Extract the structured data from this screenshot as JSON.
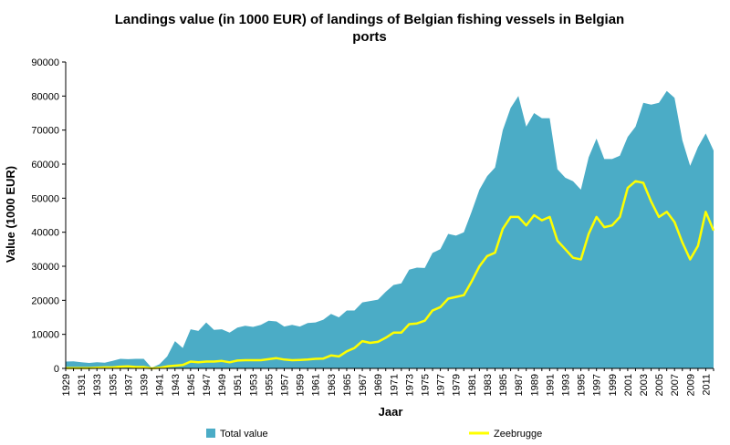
{
  "chart_data": {
    "type": "area",
    "title_lines": [
      "Landings value (in 1000 EUR) of landings of Belgian fishing vessels in Belgian",
      "ports"
    ],
    "xlabel": "Jaar",
    "ylabel": "Value  (1000 EUR)",
    "ylim": [
      0,
      90000
    ],
    "yticks": [
      "0",
      "10000",
      "20000",
      "30000",
      "40000",
      "50000",
      "60000",
      "70000",
      "80000",
      "90000"
    ],
    "xlim": [
      1929,
      2012
    ],
    "xtick_labels": [
      "1929",
      "1931",
      "1933",
      "1935",
      "1937",
      "1939",
      "1941",
      "1943",
      "1945",
      "1947",
      "1949",
      "1951",
      "1953",
      "1955",
      "1957",
      "1959",
      "1961",
      "1963",
      "1965",
      "1967",
      "1969",
      "1971",
      "1973",
      "1975",
      "1977",
      "1979",
      "1981",
      "1983",
      "1985",
      "1987",
      "1989",
      "1991",
      "1993",
      "1995",
      "1997",
      "1999",
      "2001",
      "2003",
      "2005",
      "2007",
      "2009",
      "2011"
    ],
    "legend_position": "bottom",
    "x": [
      1929,
      1930,
      1931,
      1932,
      1933,
      1934,
      1935,
      1936,
      1937,
      1938,
      1939,
      1940,
      1941,
      1942,
      1943,
      1944,
      1945,
      1946,
      1947,
      1948,
      1949,
      1950,
      1951,
      1952,
      1953,
      1954,
      1955,
      1956,
      1957,
      1958,
      1959,
      1960,
      1961,
      1962,
      1963,
      1964,
      1965,
      1966,
      1967,
      1968,
      1969,
      1970,
      1971,
      1972,
      1973,
      1974,
      1975,
      1976,
      1977,
      1978,
      1979,
      1980,
      1981,
      1982,
      1983,
      1984,
      1985,
      1986,
      1987,
      1988,
      1989,
      1990,
      1991,
      1992,
      1993,
      1994,
      1995,
      1996,
      1997,
      1998,
      1999,
      2000,
      2001,
      2002,
      2003,
      2004,
      2005,
      2006,
      2007,
      2008,
      2009,
      2010,
      2011,
      2012
    ],
    "series": [
      {
        "name": "Total value",
        "kind": "area",
        "color": "#4bacc6",
        "values": [
          2000,
          2100,
          1800,
          1600,
          1800,
          1700,
          2200,
          2800,
          2700,
          2800,
          2800,
          200,
          1200,
          3500,
          8000,
          6000,
          11500,
          11000,
          13500,
          11300,
          11500,
          10500,
          12000,
          12500,
          12200,
          12800,
          14000,
          13800,
          12300,
          12800,
          12300,
          13300,
          13500,
          14300,
          16000,
          15000,
          17000,
          17000,
          19400,
          19800,
          20200,
          22500,
          24500,
          25000,
          29000,
          29600,
          29500,
          33900,
          35000,
          39500,
          39000,
          40000,
          46000,
          52500,
          56500,
          59000,
          70000,
          76500,
          80000,
          71000,
          75000,
          73500,
          73500,
          58500,
          56000,
          55000,
          52500,
          62000,
          67500,
          61500,
          61500,
          62500,
          68000,
          71000,
          78000,
          77500,
          78000,
          81500,
          79500,
          67000,
          59500,
          65000,
          69000,
          64000
        ]
      },
      {
        "name": "Zeebrugge",
        "kind": "line",
        "color": "#ffff00",
        "values": [
          100,
          100,
          100,
          100,
          200,
          300,
          300,
          500,
          600,
          400,
          400,
          0,
          200,
          600,
          800,
          1000,
          2000,
          1800,
          2000,
          2000,
          2200,
          1800,
          2300,
          2400,
          2400,
          2400,
          2700,
          3000,
          2600,
          2400,
          2500,
          2600,
          2800,
          2900,
          3800,
          3500,
          5000,
          6000,
          8000,
          7500,
          7800,
          9000,
          10500,
          10500,
          13000,
          13200,
          14000,
          17000,
          18000,
          20500,
          21000,
          21500,
          25500,
          30000,
          33000,
          34000,
          41000,
          44500,
          44500,
          42000,
          45000,
          43500,
          44500,
          37500,
          35000,
          32500,
          32000,
          39500,
          44500,
          41500,
          42000,
          44500,
          53000,
          55000,
          54500,
          49000,
          44500,
          46000,
          43000,
          37000,
          32000,
          36000,
          46000,
          40500
        ]
      }
    ]
  }
}
